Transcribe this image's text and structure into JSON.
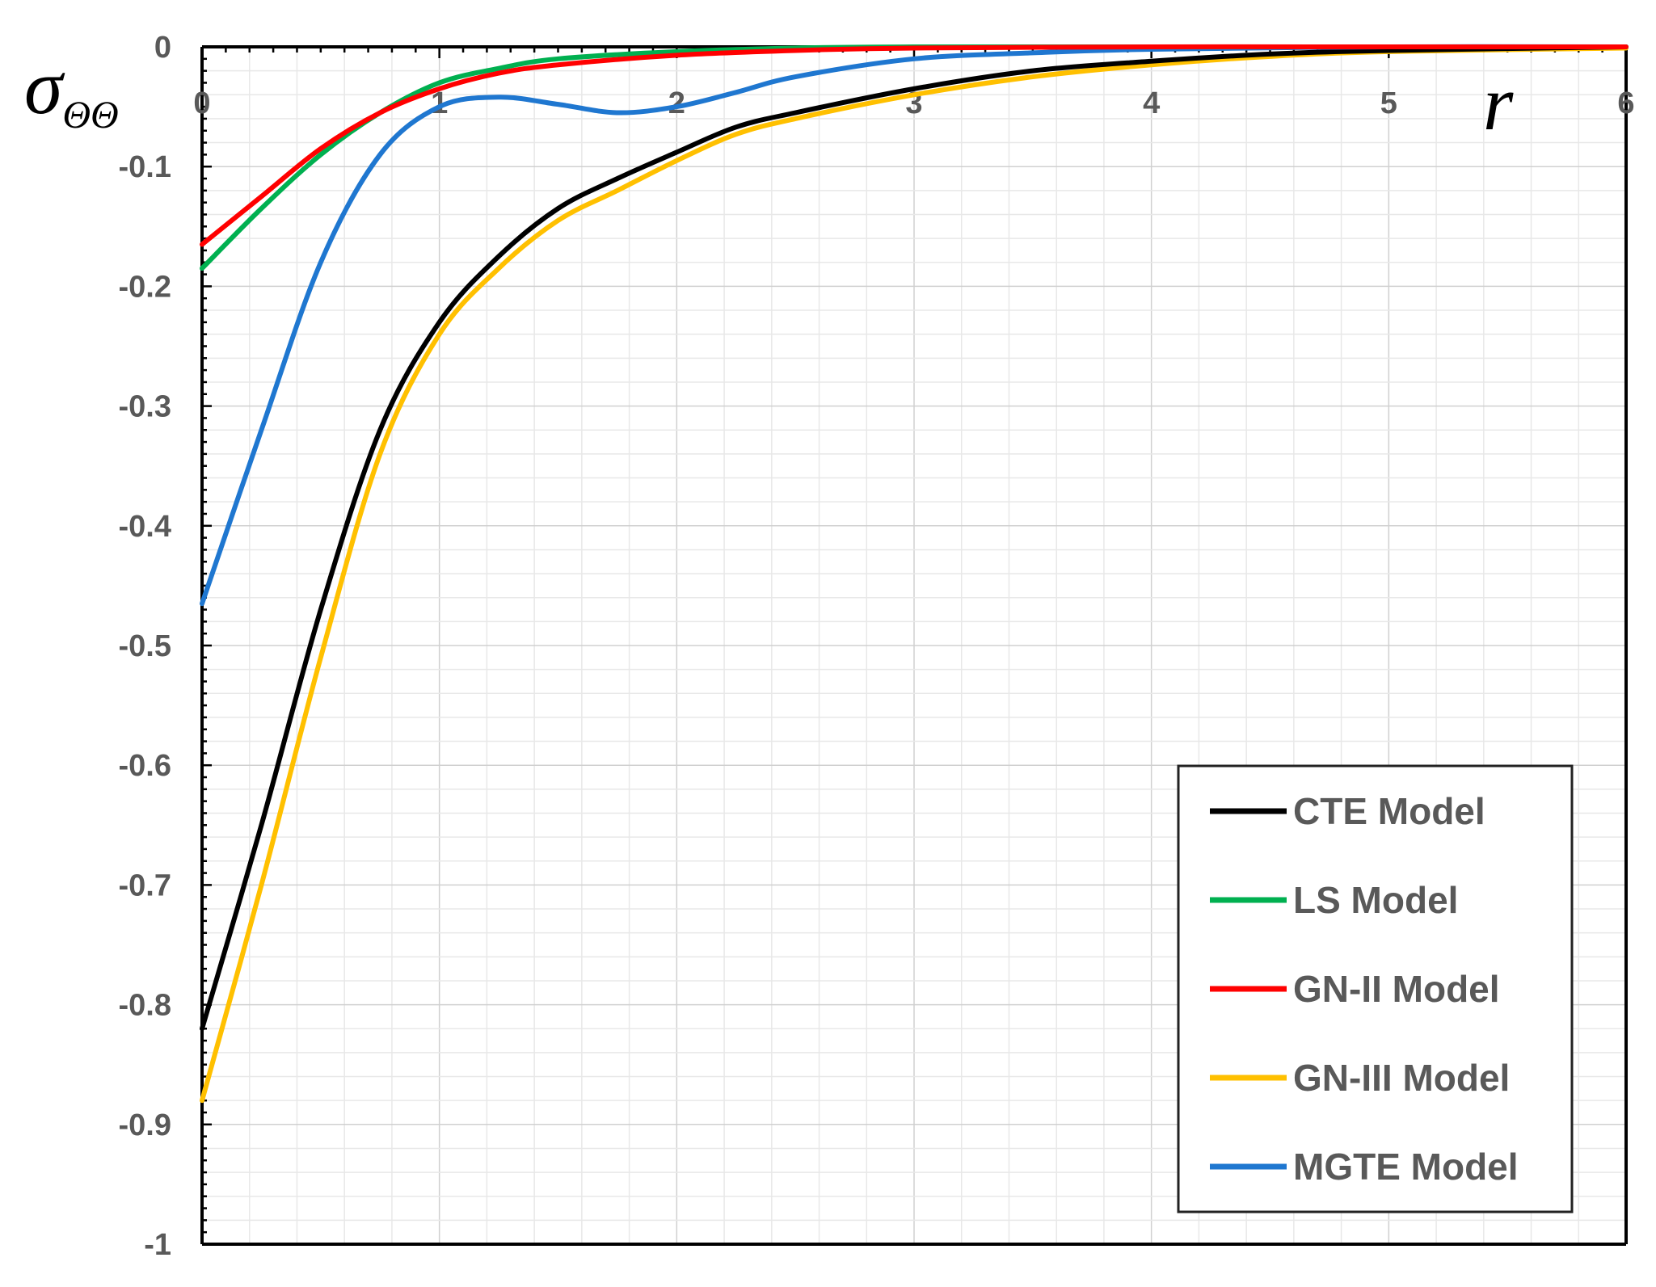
{
  "chart_data": {
    "type": "line",
    "title": "",
    "xlabel": "r",
    "ylabel": "σ",
    "ylabel_subscript": "ΘΘ",
    "xlim": [
      0,
      6
    ],
    "ylim": [
      -1,
      0
    ],
    "grid": true,
    "x_ticks": [
      "0",
      "1",
      "2",
      "3",
      "4",
      "5",
      "6"
    ],
    "y_ticks": [
      "0",
      "-0.1",
      "-0.2",
      "-0.3",
      "-0.4",
      "-0.5",
      "-0.6",
      "-0.7",
      "-0.8",
      "-0.9",
      "-1"
    ],
    "legend_position": "bottom-right",
    "series": [
      {
        "name": "CTE Model",
        "color": "#000000",
        "x": [
          0,
          0.25,
          0.5,
          0.75,
          1.0,
          1.25,
          1.5,
          1.75,
          2.0,
          2.25,
          2.5,
          3.0,
          3.5,
          4.0,
          4.5,
          5.0,
          6.0
        ],
        "y": [
          -0.82,
          -0.65,
          -0.47,
          -0.32,
          -0.23,
          -0.175,
          -0.135,
          -0.11,
          -0.088,
          -0.067,
          -0.055,
          -0.035,
          -0.02,
          -0.012,
          -0.006,
          -0.003,
          0
        ]
      },
      {
        "name": "LS Model",
        "color": "#00b050",
        "x": [
          0,
          0.25,
          0.5,
          0.75,
          1.0,
          1.25,
          1.5,
          2.0,
          2.5,
          3.0,
          4.0,
          5.0,
          6.0
        ],
        "y": [
          -0.185,
          -0.135,
          -0.09,
          -0.055,
          -0.03,
          -0.018,
          -0.01,
          -0.004,
          -0.001,
          0,
          0,
          0,
          0
        ]
      },
      {
        "name": "GN-II Model",
        "color": "#ff0000",
        "x": [
          0,
          0.25,
          0.5,
          0.75,
          1.0,
          1.25,
          1.5,
          2.0,
          2.5,
          3.0,
          4.0,
          5.0,
          6.0
        ],
        "y": [
          -0.165,
          -0.125,
          -0.085,
          -0.055,
          -0.035,
          -0.022,
          -0.015,
          -0.007,
          -0.003,
          -0.001,
          0,
          0,
          0
        ]
      },
      {
        "name": "GN-III Model",
        "color": "#ffc000",
        "x": [
          0,
          0.25,
          0.5,
          0.75,
          1.0,
          1.25,
          1.5,
          1.75,
          2.0,
          2.25,
          2.5,
          3.0,
          3.5,
          4.0,
          4.5,
          5.0,
          6.0
        ],
        "y": [
          -0.88,
          -0.7,
          -0.51,
          -0.34,
          -0.24,
          -0.185,
          -0.145,
          -0.12,
          -0.095,
          -0.073,
          -0.06,
          -0.04,
          -0.025,
          -0.015,
          -0.008,
          -0.004,
          -0.001
        ]
      },
      {
        "name": "MGTE Model",
        "color": "#1f77d0",
        "x": [
          0,
          0.25,
          0.5,
          0.75,
          1.0,
          1.25,
          1.5,
          1.75,
          2.0,
          2.25,
          2.5,
          3.0,
          3.5,
          4.0,
          5.0,
          6.0
        ],
        "y": [
          -0.465,
          -0.32,
          -0.18,
          -0.09,
          -0.05,
          -0.042,
          -0.048,
          -0.055,
          -0.05,
          -0.038,
          -0.025,
          -0.01,
          -0.005,
          -0.002,
          0,
          0
        ]
      }
    ]
  }
}
